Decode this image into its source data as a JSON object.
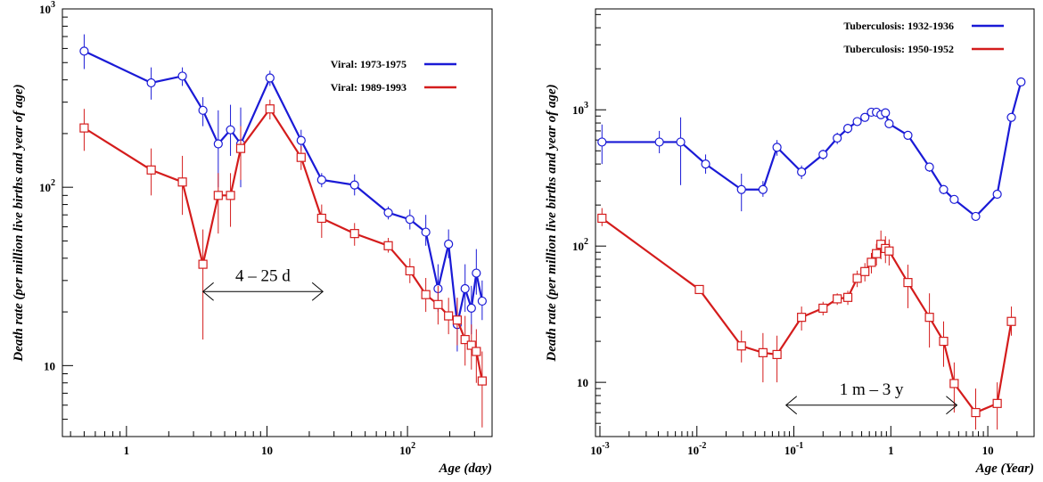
{
  "chart_data": [
    {
      "type": "line",
      "xscale": "log",
      "yscale": "log",
      "xlim": [
        0.35,
        400
      ],
      "ylim": [
        4,
        1000
      ],
      "xlabel": "Age (day)",
      "ylabel": "Death rate (per million live births and year of age)",
      "x_ticks": [
        {
          "v": 1,
          "label": "1",
          "sup": ""
        },
        {
          "v": 10,
          "label": "10",
          "sup": ""
        },
        {
          "v": 100,
          "label": "10",
          "sup": "2"
        }
      ],
      "y_ticks": [
        {
          "v": 10,
          "label": "10",
          "sup": ""
        },
        {
          "v": 100,
          "label": "10",
          "sup": "2"
        },
        {
          "v": 1000,
          "label": "10",
          "sup": "3"
        }
      ],
      "legend_position": "top-right",
      "annotation": {
        "text": "4 – 25 d",
        "x_from": 3.5,
        "x_to": 25,
        "y": 26
      },
      "series": [
        {
          "name": "Viral: 1973-1975",
          "color": "#1a1ad6",
          "marker": "circle",
          "points": [
            {
              "x": 0.5,
              "y": 580,
              "lo": 460,
              "hi": 720
            },
            {
              "x": 1.5,
              "y": 385,
              "lo": 310,
              "hi": 470
            },
            {
              "x": 2.5,
              "y": 420,
              "lo": 370,
              "hi": 470
            },
            {
              "x": 3.5,
              "y": 270,
              "lo": 220,
              "hi": 320
            },
            {
              "x": 4.5,
              "y": 175,
              "lo": 100,
              "hi": 270
            },
            {
              "x": 5.5,
              "y": 210,
              "lo": 150,
              "hi": 290
            },
            {
              "x": 6.5,
              "y": 175,
              "lo": 100,
              "hi": 280
            },
            {
              "x": 10.5,
              "y": 410,
              "lo": 370,
              "hi": 450
            },
            {
              "x": 17.5,
              "y": 183,
              "lo": 160,
              "hi": 210
            },
            {
              "x": 24.5,
              "y": 110,
              "lo": 100,
              "hi": 120
            },
            {
              "x": 42,
              "y": 103,
              "lo": 90,
              "hi": 118
            },
            {
              "x": 73,
              "y": 72,
              "lo": 66,
              "hi": 78
            },
            {
              "x": 104,
              "y": 66,
              "lo": 58,
              "hi": 75
            },
            {
              "x": 135,
              "y": 56,
              "lo": 47,
              "hi": 70
            },
            {
              "x": 165,
              "y": 27,
              "lo": 20,
              "hi": 37
            },
            {
              "x": 196,
              "y": 48,
              "lo": 40,
              "hi": 58
            },
            {
              "x": 226,
              "y": 17,
              "lo": 12,
              "hi": 24
            },
            {
              "x": 257,
              "y": 27,
              "lo": 20,
              "hi": 37
            },
            {
              "x": 285,
              "y": 21,
              "lo": 15,
              "hi": 28
            },
            {
              "x": 309,
              "y": 33,
              "lo": 25,
              "hi": 45
            },
            {
              "x": 340,
              "y": 23,
              "lo": 18,
              "hi": 30
            }
          ]
        },
        {
          "name": "Viral: 1989-1993",
          "color": "#d41c1c",
          "marker": "square",
          "points": [
            {
              "x": 0.5,
              "y": 215,
              "lo": 160,
              "hi": 275
            },
            {
              "x": 1.5,
              "y": 125,
              "lo": 90,
              "hi": 165
            },
            {
              "x": 2.5,
              "y": 107,
              "lo": 70,
              "hi": 150
            },
            {
              "x": 3.5,
              "y": 37,
              "lo": 14,
              "hi": 58
            },
            {
              "x": 4.5,
              "y": 90,
              "lo": 55,
              "hi": 120
            },
            {
              "x": 5.5,
              "y": 90,
              "lo": 60,
              "hi": 120
            },
            {
              "x": 6.5,
              "y": 165,
              "lo": 110,
              "hi": 220
            },
            {
              "x": 10.5,
              "y": 275,
              "lo": 240,
              "hi": 310
            },
            {
              "x": 17.5,
              "y": 147,
              "lo": 125,
              "hi": 170
            },
            {
              "x": 24.5,
              "y": 67,
              "lo": 52,
              "hi": 80
            },
            {
              "x": 42,
              "y": 55,
              "lo": 47,
              "hi": 63
            },
            {
              "x": 73,
              "y": 47,
              "lo": 43,
              "hi": 52
            },
            {
              "x": 104,
              "y": 34,
              "lo": 29,
              "hi": 40
            },
            {
              "x": 135,
              "y": 25,
              "lo": 20,
              "hi": 31
            },
            {
              "x": 165,
              "y": 22,
              "lo": 17,
              "hi": 28
            },
            {
              "x": 196,
              "y": 19,
              "lo": 15,
              "hi": 24
            },
            {
              "x": 226,
              "y": 18,
              "lo": 13,
              "hi": 24
            },
            {
              "x": 257,
              "y": 14,
              "lo": 10,
              "hi": 19
            },
            {
              "x": 285,
              "y": 13,
              "lo": 9.5,
              "hi": 17
            },
            {
              "x": 309,
              "y": 12,
              "lo": 8,
              "hi": 16
            },
            {
              "x": 340,
              "y": 8.2,
              "lo": 4.5,
              "hi": 12
            }
          ]
        }
      ]
    },
    {
      "type": "line",
      "xscale": "log",
      "yscale": "log",
      "xlim": [
        0.0009,
        30
      ],
      "ylim": [
        4,
        5500
      ],
      "xlabel": "Age (Year)",
      "ylabel": "Death rate (per million live births and year of age)",
      "x_ticks": [
        {
          "v": 0.001,
          "label": "10",
          "sup": "-3"
        },
        {
          "v": 0.01,
          "label": "10",
          "sup": "-2"
        },
        {
          "v": 0.1,
          "label": "10",
          "sup": "-1"
        },
        {
          "v": 1,
          "label": "1",
          "sup": ""
        },
        {
          "v": 10,
          "label": "10",
          "sup": ""
        }
      ],
      "y_ticks": [
        {
          "v": 10,
          "label": "10",
          "sup": ""
        },
        {
          "v": 100,
          "label": "10",
          "sup": "2"
        },
        {
          "v": 1000,
          "label": "10",
          "sup": "3"
        }
      ],
      "legend_position": "top-right",
      "annotation": {
        "text": "1 m – 3 y",
        "x_from": 0.083,
        "x_to": 4.8,
        "y": 6.8
      },
      "series": [
        {
          "name": "Tuberculosis: 1932-1936",
          "color": "#1a1ad6",
          "marker": "circle",
          "points": [
            {
              "x": 0.00105,
              "y": 580,
              "lo": 400,
              "hi": 780
            },
            {
              "x": 0.0041,
              "y": 580,
              "lo": 480,
              "hi": 700
            },
            {
              "x": 0.0068,
              "y": 580,
              "lo": 280,
              "hi": 880
            },
            {
              "x": 0.0123,
              "y": 400,
              "lo": 340,
              "hi": 470
            },
            {
              "x": 0.0288,
              "y": 260,
              "lo": 180,
              "hi": 340
            },
            {
              "x": 0.048,
              "y": 260,
              "lo": 230,
              "hi": 300
            },
            {
              "x": 0.067,
              "y": 530,
              "lo": 460,
              "hi": 600
            },
            {
              "x": 0.12,
              "y": 350,
              "lo": 310,
              "hi": 390
            },
            {
              "x": 0.2,
              "y": 470,
              "lo": 430,
              "hi": 510
            },
            {
              "x": 0.28,
              "y": 620,
              "lo": 560,
              "hi": 680
            },
            {
              "x": 0.36,
              "y": 730,
              "lo": 670,
              "hi": 790
            },
            {
              "x": 0.45,
              "y": 820,
              "lo": 760,
              "hi": 880
            },
            {
              "x": 0.54,
              "y": 880,
              "lo": 820,
              "hi": 940
            },
            {
              "x": 0.63,
              "y": 960,
              "lo": 900,
              "hi": 1020
            },
            {
              "x": 0.71,
              "y": 960,
              "lo": 900,
              "hi": 1020
            },
            {
              "x": 0.79,
              "y": 920,
              "lo": 860,
              "hi": 980
            },
            {
              "x": 0.88,
              "y": 950,
              "lo": 890,
              "hi": 1010
            },
            {
              "x": 0.96,
              "y": 790,
              "lo": 740,
              "hi": 840
            },
            {
              "x": 1.5,
              "y": 650,
              "lo": 610,
              "hi": 690
            },
            {
              "x": 2.5,
              "y": 380,
              "lo": 350,
              "hi": 410
            },
            {
              "x": 3.5,
              "y": 260,
              "lo": 240,
              "hi": 280
            },
            {
              "x": 4.5,
              "y": 220,
              "lo": 205,
              "hi": 235
            },
            {
              "x": 7.5,
              "y": 165,
              "lo": 155,
              "hi": 175
            },
            {
              "x": 12.5,
              "y": 240,
              "lo": 225,
              "hi": 255
            },
            {
              "x": 17.5,
              "y": 880,
              "lo": 840,
              "hi": 920
            },
            {
              "x": 22,
              "y": 1600,
              "lo": 1530,
              "hi": 1670
            }
          ]
        },
        {
          "name": "Tuberculosis: 1950-1952",
          "color": "#d41c1c",
          "marker": "square",
          "points": [
            {
              "x": 0.00105,
              "y": 160,
              "lo": 140,
              "hi": 190
            },
            {
              "x": 0.0106,
              "y": 48,
              "lo": 45,
              "hi": 51
            },
            {
              "x": 0.0288,
              "y": 18.5,
              "lo": 14,
              "hi": 24
            },
            {
              "x": 0.048,
              "y": 16.5,
              "lo": 10,
              "hi": 23
            },
            {
              "x": 0.067,
              "y": 16,
              "lo": 10,
              "hi": 22
            },
            {
              "x": 0.12,
              "y": 30,
              "lo": 24,
              "hi": 36
            },
            {
              "x": 0.2,
              "y": 35,
              "lo": 31,
              "hi": 39
            },
            {
              "x": 0.28,
              "y": 41,
              "lo": 37,
              "hi": 45
            },
            {
              "x": 0.36,
              "y": 42,
              "lo": 37,
              "hi": 47
            },
            {
              "x": 0.45,
              "y": 58,
              "lo": 50,
              "hi": 66
            },
            {
              "x": 0.54,
              "y": 65,
              "lo": 55,
              "hi": 75
            },
            {
              "x": 0.63,
              "y": 76,
              "lo": 63,
              "hi": 89
            },
            {
              "x": 0.71,
              "y": 88,
              "lo": 72,
              "hi": 104
            },
            {
              "x": 0.79,
              "y": 103,
              "lo": 80,
              "hi": 130
            },
            {
              "x": 0.88,
              "y": 96,
              "lo": 75,
              "hi": 118
            },
            {
              "x": 0.96,
              "y": 92,
              "lo": 72,
              "hi": 112
            },
            {
              "x": 1.5,
              "y": 54,
              "lo": 35,
              "hi": 73
            },
            {
              "x": 2.5,
              "y": 30,
              "lo": 18,
              "hi": 45
            },
            {
              "x": 3.5,
              "y": 20,
              "lo": 13,
              "hi": 28
            },
            {
              "x": 4.5,
              "y": 9.8,
              "lo": 6,
              "hi": 14
            },
            {
              "x": 7.5,
              "y": 6,
              "lo": 4.5,
              "hi": 9
            },
            {
              "x": 12.5,
              "y": 7,
              "lo": 4.5,
              "hi": 10
            },
            {
              "x": 17.5,
              "y": 28,
              "lo": 22,
              "hi": 36
            }
          ]
        }
      ]
    }
  ]
}
